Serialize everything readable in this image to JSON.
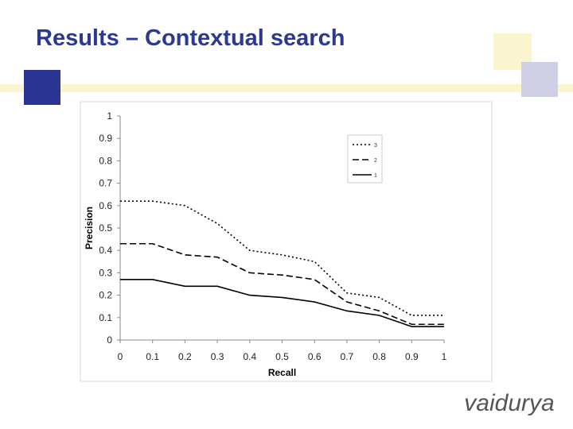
{
  "slide": {
    "title": "Results – Contextual search",
    "logo": "vaidurya"
  },
  "chart_data": {
    "type": "line",
    "xlabel": "Recall",
    "ylabel": "Precision",
    "x": [
      0,
      0.1,
      0.2,
      0.3,
      0.4,
      0.5,
      0.6,
      0.7,
      0.8,
      0.9,
      1
    ],
    "series": [
      {
        "name": "3",
        "color": "#000000",
        "style": "dotted",
        "values": [
          0.62,
          0.62,
          0.6,
          0.52,
          0.4,
          0.38,
          0.35,
          0.21,
          0.19,
          0.11,
          0.11
        ]
      },
      {
        "name": "2",
        "color": "#000000",
        "style": "dashed",
        "values": [
          0.43,
          0.43,
          0.38,
          0.37,
          0.3,
          0.29,
          0.27,
          0.17,
          0.13,
          0.07,
          0.07
        ]
      },
      {
        "name": "1",
        "color": "#000000",
        "style": "solid",
        "values": [
          0.27,
          0.27,
          0.24,
          0.24,
          0.2,
          0.19,
          0.17,
          0.13,
          0.11,
          0.06,
          0.06
        ]
      }
    ],
    "xlim": [
      0,
      1
    ],
    "ylim": [
      0,
      1
    ],
    "xticks": [
      0,
      0.1,
      0.2,
      0.3,
      0.4,
      0.5,
      0.6,
      0.7,
      0.8,
      0.9,
      1
    ],
    "yticks": [
      0,
      0.1,
      0.2,
      0.3,
      0.4,
      0.5,
      0.6,
      0.7,
      0.8,
      0.9,
      1
    ],
    "grid": false,
    "legend": "upper right"
  }
}
